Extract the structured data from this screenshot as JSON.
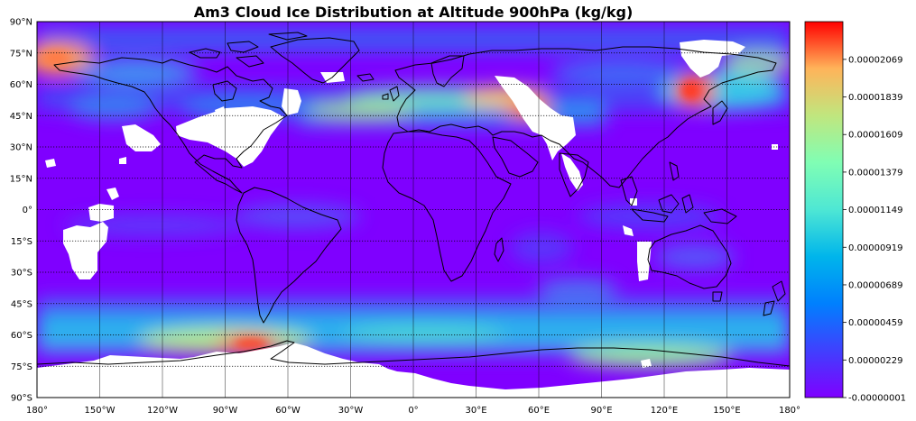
{
  "title": "Am3 Cloud Ice Distribution at Altitude 900hPa (kg/kg)",
  "colormap": "rainbow",
  "colors": {
    "low": "#7f00ff",
    "high": "#ff0000",
    "missing": "#ffffff"
  },
  "lat_labels": [
    "90°N",
    "75°N",
    "60°N",
    "45°N",
    "30°N",
    "15°N",
    "0°",
    "15°S",
    "30°S",
    "45°S",
    "60°S",
    "75°S",
    "90°S"
  ],
  "lat_values": [
    90,
    75,
    60,
    45,
    30,
    15,
    0,
    -15,
    -30,
    -45,
    -60,
    -75,
    -90
  ],
  "lon_labels": [
    "180°",
    "150°W",
    "120°W",
    "90°W",
    "60°W",
    "30°W",
    "0°",
    "30°E",
    "60°E",
    "90°E",
    "120°E",
    "150°E",
    "180°"
  ],
  "lon_values": [
    -180,
    -150,
    -120,
    -90,
    -60,
    -30,
    0,
    30,
    60,
    90,
    120,
    150,
    180
  ],
  "colorbar": {
    "ticks": [
      "0.00002069",
      "0.00001839",
      "0.00001609",
      "0.00001379",
      "0.00001149",
      "0.00000919",
      "0.00000689",
      "0.00000459",
      "0.00000229",
      "-0.00000001"
    ],
    "tick_values": [
      2.069e-05,
      1.839e-05,
      1.609e-05,
      1.379e-05,
      1.149e-05,
      9.19e-06,
      6.89e-06,
      4.59e-06,
      2.29e-06,
      -1e-08
    ],
    "vmin": -1e-08,
    "vmax": 2.3e-05
  }
}
